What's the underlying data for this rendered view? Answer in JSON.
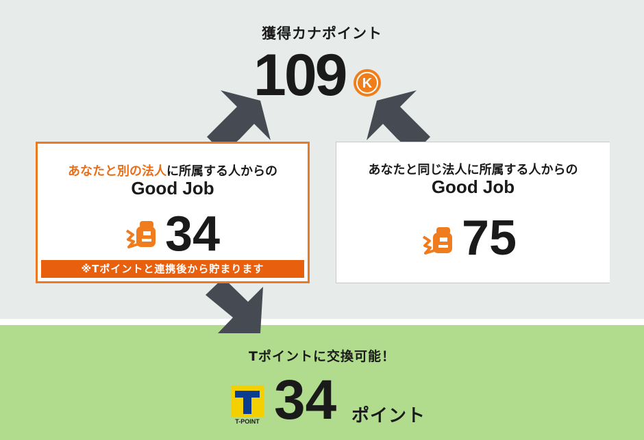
{
  "total": {
    "label": "獲得カナポイント",
    "value": "109",
    "unit_icon": "kana-point-coin-icon",
    "unit_icon_letter": "K"
  },
  "cards": [
    {
      "title_highlight": "あなたと別の法人",
      "title_rest": "に所属する人からの",
      "subtitle": "Good Job",
      "count": "34",
      "icon": "fist-bump-icon",
      "notice": "※Tポイントと連携後から貯まります"
    },
    {
      "title": "あなたと同じ法人に所属する人からの",
      "subtitle": "Good Job",
      "count": "75",
      "icon": "fist-bump-icon"
    }
  ],
  "exchange": {
    "label": "Tポイントに交換可能！",
    "value": "34",
    "unit": "ポイント",
    "logo_icon": "t-point-logo-icon",
    "logo_text": "T-POINT"
  },
  "colors": {
    "top_background": "#e7ebea",
    "bottom_background": "#b1dc8e",
    "accent_orange": "#e8600e",
    "arrow": "#464a52",
    "t_point_yellow": "#f5d000",
    "t_point_blue": "#0c3c8e"
  }
}
